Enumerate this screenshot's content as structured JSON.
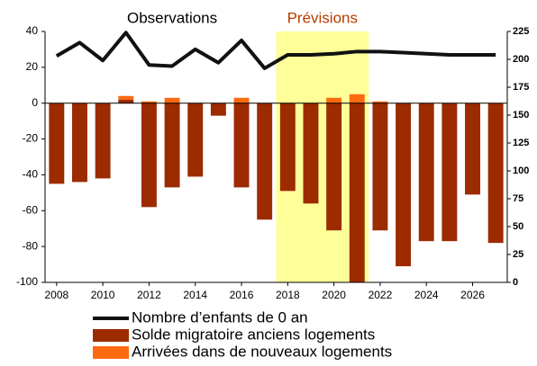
{
  "chart_data": {
    "type": "bar_line",
    "x": [
      2008,
      2009,
      2010,
      2011,
      2012,
      2013,
      2014,
      2015,
      2016,
      2017,
      2018,
      2019,
      2020,
      2021,
      2022,
      2023,
      2024,
      2025,
      2026,
      2027
    ],
    "xlim": [
      2007.5,
      2027.5
    ],
    "xticks": [
      2008,
      2010,
      2012,
      2014,
      2016,
      2018,
      2020,
      2022,
      2024,
      2026
    ],
    "series": [
      {
        "name": "Nombre d’enfants de 0 an",
        "color": "#111111",
        "kind": "line",
        "axis": "y2",
        "values": [
          203,
          215,
          199,
          224,
          195,
          194,
          209,
          197,
          217,
          192,
          204,
          204,
          205,
          207,
          207,
          206,
          205,
          204,
          204,
          204
        ]
      },
      {
        "name": "Solde migratoire anciens logements",
        "color": "#9c2b00",
        "kind": "bar",
        "values": [
          -45,
          -44,
          -42,
          2,
          -58,
          -47,
          -41,
          -7,
          -47,
          -65,
          -49,
          -56,
          -71,
          -100,
          -71,
          -91,
          -77,
          -77,
          -51,
          -78
        ]
      },
      {
        "name": "Arrivées dans de nouveaux logements",
        "color": "#ff6a10",
        "kind": "bar",
        "values": [
          0,
          0,
          0,
          2,
          1,
          3,
          0,
          0,
          3,
          0,
          0,
          0,
          3,
          5,
          1,
          0,
          0,
          0,
          0,
          0
        ]
      }
    ],
    "ylim": [
      -100,
      40
    ],
    "yticks": [
      -100,
      -80,
      -60,
      -40,
      -20,
      0,
      20,
      40
    ],
    "y2lim": [
      0,
      225
    ],
    "y2ticks": [
      0,
      25,
      50,
      75,
      100,
      125,
      150,
      175,
      200,
      225
    ],
    "highlight_x": [
      2017.5,
      2021.5
    ],
    "highlight_color": "#ffff99",
    "annotations": [
      {
        "text": "Observations",
        "x": 2013,
        "color": "#000000"
      },
      {
        "text": "Prévisions",
        "x": 2019.5,
        "color": "#b83c00"
      }
    ],
    "grid": false
  }
}
